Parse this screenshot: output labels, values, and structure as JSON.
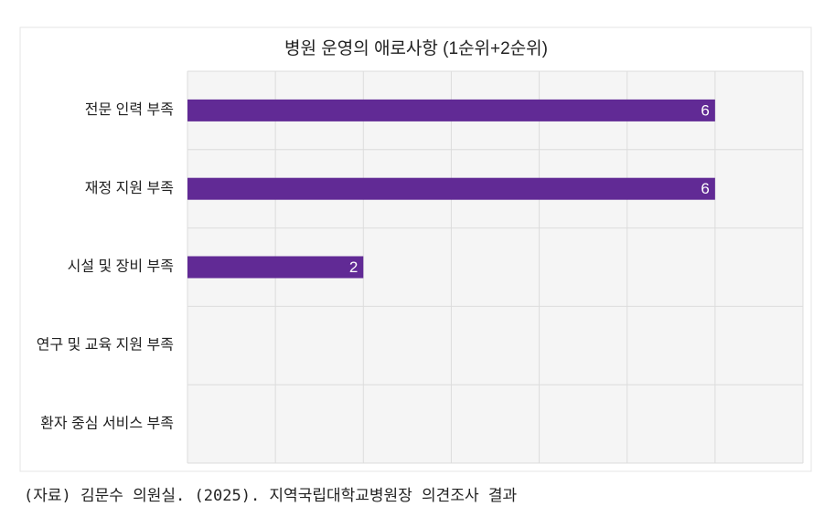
{
  "chart_data": {
    "type": "barh",
    "title": "병원 운영의 애로사항 (1순위+2순위)",
    "categories": [
      "전문 인력 부족",
      "재정 지원 부족",
      "시설 및 장비 부족",
      "연구 및 교육 지원 부족",
      "환자 중심 서비스 부족"
    ],
    "values": [
      6,
      6,
      2,
      0,
      0
    ],
    "color": "#612a95",
    "xlim": [
      0,
      7
    ],
    "xticks": [
      0,
      1,
      2,
      3,
      4,
      5,
      6,
      7
    ],
    "grid": true,
    "source": "(자료) 김문수 의원실. (2025). 지역국립대학교병원장 의견조사 결과"
  }
}
